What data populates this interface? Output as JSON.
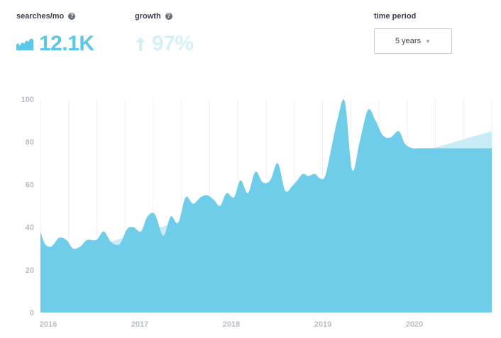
{
  "metrics": {
    "searches": {
      "label": "searches/mo",
      "value": "12.1K",
      "icon": "trend-wave-icon"
    },
    "growth": {
      "label": "growth",
      "value": "97%",
      "icon": "arrow-up-icon"
    }
  },
  "period": {
    "label": "time period",
    "selected": "5 years"
  },
  "colors": {
    "area": "#70cdea",
    "trend": "#c9ecf8",
    "accent": "#5cc7ea",
    "growth": "#d6f0fa"
  },
  "chart_data": {
    "type": "area",
    "x_ticks": [
      "2016",
      "2017",
      "2018",
      "2019",
      "2020"
    ],
    "y_ticks": [
      0,
      20,
      40,
      60,
      80,
      100
    ],
    "ylim": [
      0,
      100
    ],
    "xlim": [
      2016.0,
      2020.85
    ],
    "grid": true,
    "series": [
      {
        "x": [
          2016.0,
          2016.05,
          2016.12,
          2016.2,
          2016.28,
          2016.35,
          2016.43,
          2016.5,
          2016.6,
          2016.68,
          2016.76,
          2016.85,
          2016.93,
          2017.0,
          2017.08,
          2017.15,
          2017.23,
          2017.32,
          2017.4,
          2017.48,
          2017.56,
          2017.64,
          2017.72,
          2017.79,
          2017.86,
          2017.93,
          2018.0,
          2018.08,
          2018.15,
          2018.23,
          2018.31,
          2018.39,
          2018.47,
          2018.55,
          2018.63,
          2018.7,
          2018.76,
          2018.82,
          2018.88,
          2018.95,
          2019.0,
          2019.06,
          2019.13,
          2019.19,
          2019.27,
          2019.35,
          2019.43,
          2019.52,
          2019.6,
          2019.68,
          2019.76,
          2019.85,
          2019.92,
          2020.0,
          2020.06,
          2020.12,
          2020.2,
          2020.26,
          2020.33,
          2020.42,
          2020.5,
          2020.56,
          2020.62,
          2020.7,
          2020.78,
          2020.85
        ],
        "y": [
          38,
          32,
          31,
          35,
          34,
          30,
          31,
          34,
          34,
          38,
          33,
          32,
          39,
          40,
          38,
          45,
          46,
          36,
          45,
          42,
          54,
          51,
          54,
          55,
          53,
          50,
          56,
          54,
          62,
          56,
          66,
          61,
          62,
          70,
          57,
          59,
          62,
          65,
          64,
          65,
          63,
          64,
          78,
          90,
          99,
          67,
          80,
          95,
          90,
          83,
          82,
          85,
          79,
          77,
          77,
          77,
          77,
          77,
          77,
          77,
          77,
          77,
          77,
          77,
          77,
          77
        ]
      },
      {
        "x": [
          2016.5,
          2020.85
        ],
        "y": [
          30,
          85
        ]
      }
    ]
  }
}
